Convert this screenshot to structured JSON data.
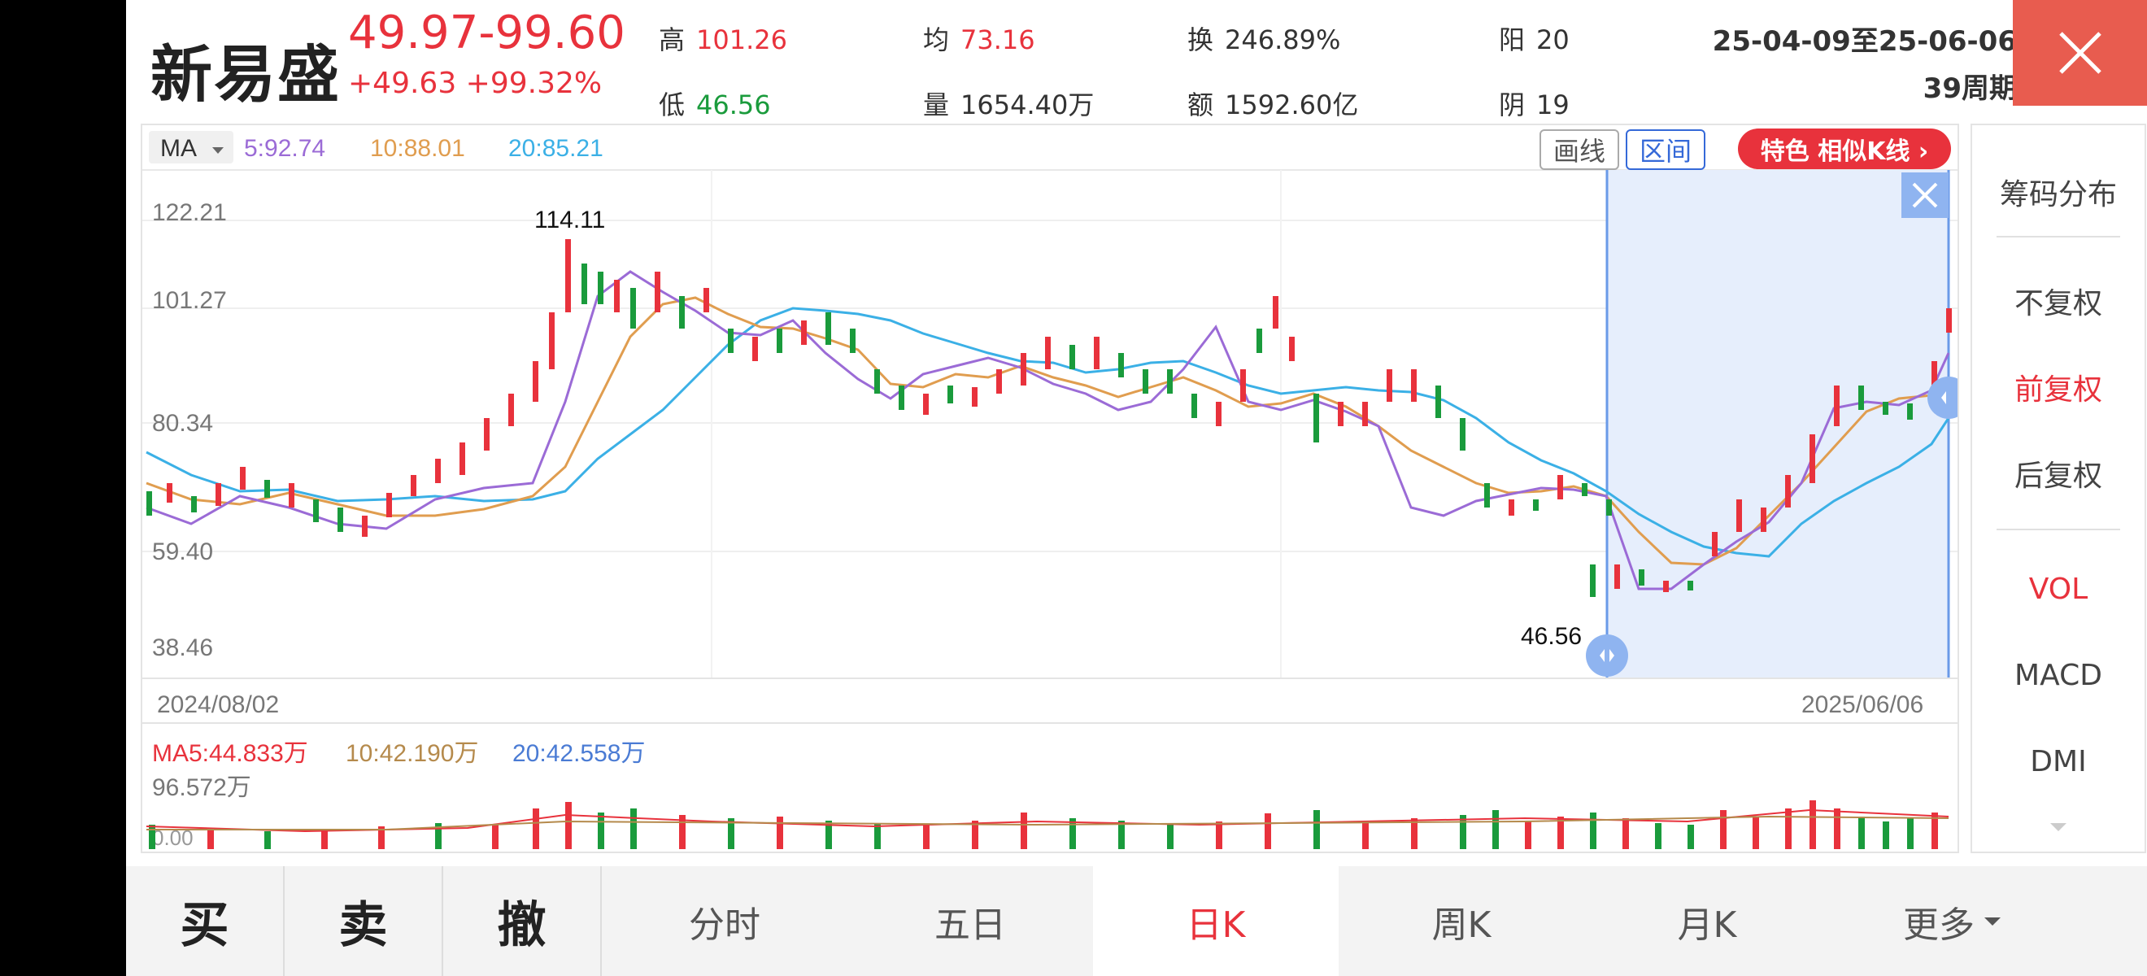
{
  "header": {
    "stock_name": "新易盛",
    "price_range": "49.97-99.60",
    "change": "+49.63  +99.32%",
    "stats": {
      "high_label": "高",
      "high": "101.26",
      "low_label": "低",
      "low": "46.56",
      "avg_label": "均",
      "avg": "73.16",
      "volume_label": "量",
      "volume": "1654.40万",
      "turnover_label": "换",
      "turnover": "246.89%",
      "amount_label": "额",
      "amount": "1592.60亿",
      "up_label": "阳",
      "up": "20",
      "down_label": "阴",
      "down": "19"
    },
    "date_range": "25-04-09至25-06-06",
    "period": "39周期"
  },
  "toolbar": {
    "ma_select": "MA",
    "ma5": "5:92.74",
    "ma10": "10:88.01",
    "ma20": "20:85.21",
    "draw_btn": "画线",
    "range_btn": "区间",
    "feature_btn": "特色  相似K线 ›"
  },
  "axis": {
    "y_labels": [
      "122.21",
      "101.27",
      "80.34",
      "59.40",
      "38.46"
    ],
    "date_start": "2024/08/02",
    "date_end": "2025/06/06",
    "high_mark": "114.11",
    "low_mark": "46.56"
  },
  "volume": {
    "ma5": "MA5:44.833万",
    "ma10": "10:42.190万",
    "ma20": "20:42.558万",
    "max": "96.572万",
    "zero": "0.00"
  },
  "sidebar": {
    "chip": "筹码分布",
    "no_adjust": "不复权",
    "forward_adjust": "前复权",
    "backward_adjust": "后复权",
    "vol": "VOL",
    "macd": "MACD",
    "dmi": "DMI"
  },
  "nav": {
    "buy": "买",
    "sell": "卖",
    "cancel": "撤",
    "intraday": "分时",
    "five_day": "五日",
    "day_k": "日K",
    "week_k": "周K",
    "month_k": "月K",
    "more": "更多"
  },
  "colors": {
    "up": "#e8323c",
    "down": "#1a9b3c",
    "ma5": "#9b6bd6",
    "ma10": "#e09d4f",
    "ma20": "#3bb0e6",
    "selection": "#e6eefc"
  }
}
